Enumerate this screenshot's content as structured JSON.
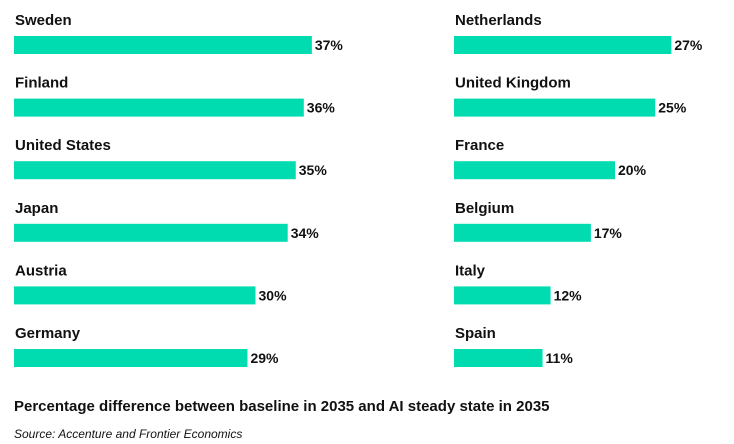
{
  "chart_data": {
    "type": "bar",
    "orientation": "horizontal",
    "bar_color": "#00dbb0",
    "value_suffix": "%",
    "panels": [
      {
        "categories": [
          "Sweden",
          "Finland",
          "United States",
          "Japan",
          "Austria",
          "Germany"
        ],
        "values": [
          37,
          36,
          35,
          34,
          30,
          29
        ]
      },
      {
        "categories": [
          "Netherlands",
          "United Kingdom",
          "France",
          "Belgium",
          "Italy",
          "Spain"
        ],
        "values": [
          27,
          25,
          20,
          17,
          12,
          11
        ]
      }
    ],
    "title": "Percentage difference between baseline in 2035 and AI steady state in 2035",
    "source": "Source: Accenture and Frontier Economics"
  }
}
